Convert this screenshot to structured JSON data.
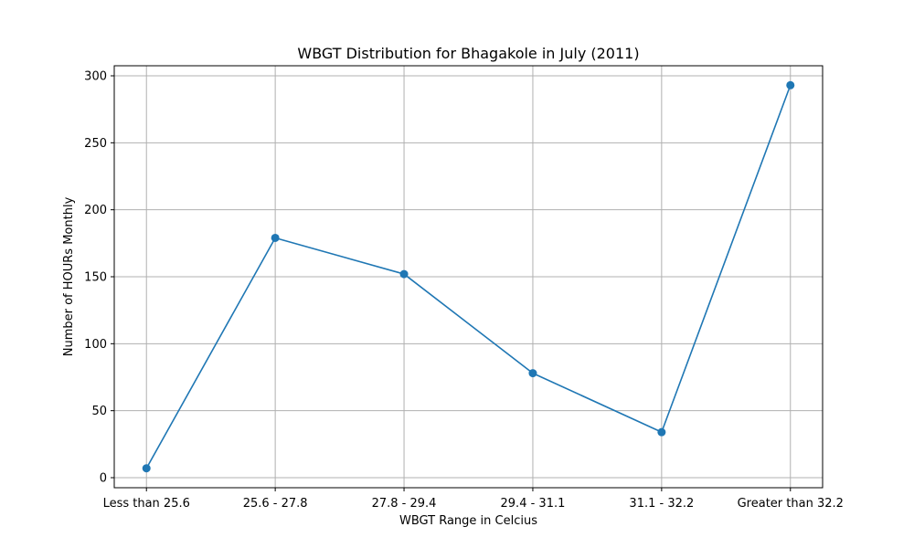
{
  "chart_data": {
    "type": "line",
    "title": "WBGT Distribution for Bhagakole in July (2011)",
    "xlabel": "WBGT Range in Celcius",
    "ylabel": "Number of HOURs Monthly",
    "categories": [
      "Less than 25.6",
      "25.6 - 27.8",
      "27.8 - 29.4",
      "29.4 - 31.1",
      "31.1 - 32.2",
      "Greater than 32.2"
    ],
    "values": [
      7,
      179,
      152,
      78,
      34,
      293
    ],
    "ylim": [
      -7.5,
      307.5
    ],
    "yticks": [
      0,
      50,
      100,
      150,
      200,
      250,
      300
    ],
    "grid": true,
    "legend": false,
    "colors": {
      "line": "#1f77b4",
      "grid": "#b0b0b0",
      "axis": "#000000"
    }
  }
}
